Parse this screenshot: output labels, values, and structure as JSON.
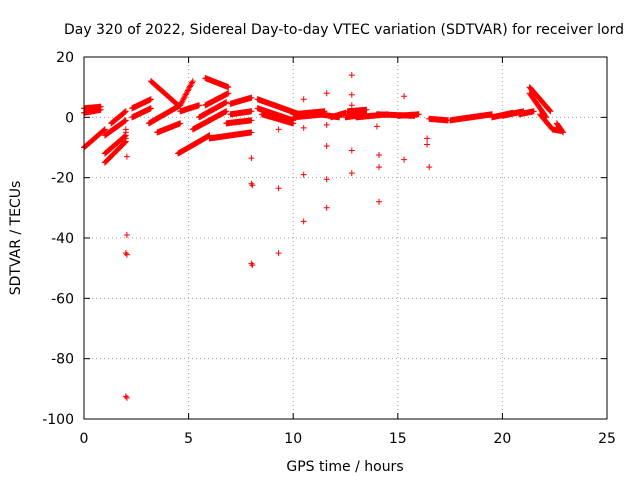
{
  "chart_data": {
    "type": "scatter",
    "title": "Day 320 of 2022, Sidereal Day-to-day VTEC variation (SDTVAR) for receiver lord",
    "xlabel": "GPS time / hours",
    "ylabel": "SDTVAR / TECUs",
    "xlim": [
      0,
      25
    ],
    "ylim": [
      -100,
      20
    ],
    "xticks": [
      0,
      5,
      10,
      15,
      20,
      25
    ],
    "yticks": [
      -100,
      -80,
      -60,
      -40,
      -20,
      0,
      20
    ],
    "grid": true,
    "marker": "+",
    "color": "#ff0000",
    "segments": [
      [
        0.0,
        -10.0,
        1.0,
        -4.0
      ],
      [
        0.0,
        1.5,
        0.8,
        2.5
      ],
      [
        0.0,
        3.0,
        0.8,
        3.5
      ],
      [
        1.0,
        -12.0,
        2.0,
        -6.0
      ],
      [
        1.0,
        -15.0,
        2.0,
        -8.0
      ],
      [
        1.0,
        -6.0,
        2.0,
        -1.0
      ],
      [
        1.3,
        -2.0,
        2.0,
        2.0
      ],
      [
        2.3,
        3.0,
        3.2,
        6.0
      ],
      [
        2.3,
        0.0,
        3.2,
        3.0
      ],
      [
        3.1,
        -2.0,
        4.6,
        4.0
      ],
      [
        3.2,
        12.0,
        4.5,
        4.0
      ],
      [
        3.5,
        -5.0,
        4.6,
        -2.0
      ],
      [
        4.6,
        4.0,
        5.2,
        12.0
      ],
      [
        4.6,
        2.0,
        5.5,
        4.0
      ],
      [
        4.5,
        -12.0,
        6.0,
        -6.0
      ],
      [
        5.2,
        -4.0,
        6.8,
        2.0
      ],
      [
        5.5,
        0.0,
        6.8,
        5.0
      ],
      [
        5.8,
        4.0,
        6.9,
        8.0
      ],
      [
        5.8,
        13.0,
        6.9,
        10.0
      ],
      [
        6.0,
        -7.0,
        8.0,
        -5.0
      ],
      [
        6.8,
        -2.0,
        8.0,
        -1.0
      ],
      [
        7.0,
        1.0,
        8.0,
        2.0
      ],
      [
        7.0,
        4.5,
        8.0,
        6.5
      ],
      [
        8.3,
        6.0,
        10.3,
        1.0
      ],
      [
        8.3,
        3.0,
        10.0,
        -1.0
      ],
      [
        8.5,
        1.0,
        10.0,
        -2.0
      ],
      [
        10.0,
        0.0,
        11.5,
        1.0
      ],
      [
        10.0,
        1.0,
        11.5,
        2.0
      ],
      [
        11.3,
        1.0,
        12.2,
        0.0
      ],
      [
        11.8,
        0.0,
        12.5,
        1.5
      ],
      [
        12.5,
        0.0,
        13.5,
        1.0
      ],
      [
        12.6,
        2.0,
        13.5,
        2.5
      ],
      [
        13.0,
        0.0,
        14.5,
        1.0
      ],
      [
        14.0,
        1.0,
        15.8,
        0.5
      ],
      [
        15.0,
        0.5,
        16.0,
        1.0
      ],
      [
        16.5,
        -0.5,
        17.4,
        -1.0
      ],
      [
        17.5,
        -1.0,
        18.5,
        0.0
      ],
      [
        18.5,
        0.0,
        19.5,
        1.0
      ],
      [
        19.5,
        0.0,
        20.5,
        1.5
      ],
      [
        20.0,
        0.5,
        21.0,
        2.0
      ],
      [
        20.8,
        1.0,
        21.5,
        2.0
      ],
      [
        21.3,
        10.0,
        22.3,
        2.0
      ],
      [
        21.3,
        8.0,
        22.1,
        0.0
      ],
      [
        21.8,
        1.0,
        22.4,
        -4.0
      ],
      [
        22.4,
        -4.0,
        22.8,
        -4.5
      ],
      [
        22.6,
        -2.0,
        22.9,
        -5.0
      ]
    ],
    "points": [
      [
        2.0,
        -4.0
      ],
      [
        2.0,
        -5.0
      ],
      [
        2.0,
        -7.0
      ],
      [
        2.05,
        -13.0
      ],
      [
        2.05,
        -39.0
      ],
      [
        2.0,
        -45.0
      ],
      [
        2.05,
        -45.5
      ],
      [
        2.0,
        -92.5
      ],
      [
        2.05,
        -93.0
      ],
      [
        8.0,
        -13.5
      ],
      [
        8.0,
        -22.0
      ],
      [
        8.05,
        -22.5
      ],
      [
        8.0,
        -48.5
      ],
      [
        8.05,
        -49.0
      ],
      [
        9.3,
        -4.0
      ],
      [
        9.3,
        -23.5
      ],
      [
        9.3,
        -45.0
      ],
      [
        10.5,
        6.0
      ],
      [
        10.5,
        -3.5
      ],
      [
        10.5,
        -19.0
      ],
      [
        10.5,
        -34.5
      ],
      [
        11.6,
        8.0
      ],
      [
        11.6,
        -2.5
      ],
      [
        11.6,
        -9.5
      ],
      [
        11.6,
        -20.5
      ],
      [
        11.6,
        -30.0
      ],
      [
        12.8,
        14.0
      ],
      [
        12.8,
        7.5
      ],
      [
        12.8,
        4.0
      ],
      [
        12.8,
        -11.0
      ],
      [
        12.8,
        -18.5
      ],
      [
        14.0,
        -3.0
      ],
      [
        14.1,
        -12.5
      ],
      [
        14.1,
        -16.5
      ],
      [
        14.1,
        -28.0
      ],
      [
        15.3,
        7.0
      ],
      [
        15.3,
        -14.0
      ],
      [
        16.4,
        -7.0
      ],
      [
        16.4,
        -9.0
      ],
      [
        16.5,
        -16.5
      ]
    ]
  }
}
